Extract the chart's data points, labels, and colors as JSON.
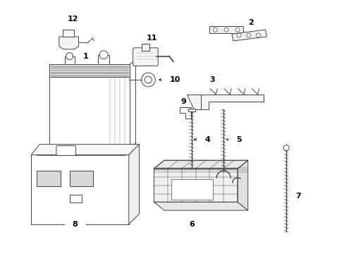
{
  "background_color": "#ffffff",
  "line_color": "#444444",
  "label_color": "#000000",
  "figsize": [
    4.89,
    3.6
  ],
  "dpi": 100
}
